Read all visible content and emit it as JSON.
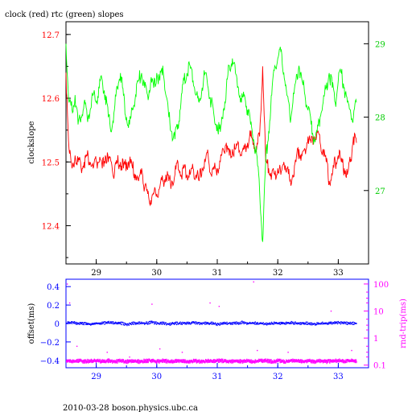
{
  "footer": "2010-03-28  boson.physics.ubc.ca",
  "chart_data": [
    {
      "type": "line",
      "title": "clock (red) rtc (green) slopes",
      "ylabel": "clockslope",
      "xlim": [
        28.5,
        33.5
      ],
      "x_ticks": [
        29,
        30,
        31,
        32,
        33
      ],
      "ylim_left": [
        12.34,
        12.72
      ],
      "yticks_left": [
        12.4,
        12.5,
        12.6,
        12.7
      ],
      "ylim_right": [
        26.0,
        29.3
      ],
      "yticks_right": [
        27,
        28,
        29
      ],
      "colors": {
        "axes": "#000000",
        "clock": "#ff0000",
        "rtc": "#00ff00"
      },
      "series": [
        {
          "axis": "left",
          "color": "#ff0000",
          "x": [
            28.5,
            28.55,
            28.6,
            28.65,
            28.7,
            28.75,
            28.8,
            28.85,
            28.9,
            28.95,
            29.0,
            29.05,
            29.1,
            29.15,
            29.2,
            29.25,
            29.3,
            29.35,
            29.4,
            29.45,
            29.5,
            29.55,
            29.6,
            29.65,
            29.7,
            29.75,
            29.8,
            29.85,
            29.9,
            29.95,
            30.0,
            30.05,
            30.1,
            30.15,
            30.2,
            30.25,
            30.3,
            30.35,
            30.4,
            30.45,
            30.5,
            30.55,
            30.6,
            30.65,
            30.7,
            30.75,
            30.8,
            30.85,
            30.9,
            30.95,
            31.0,
            31.05,
            31.1,
            31.15,
            31.2,
            31.25,
            31.3,
            31.35,
            31.4,
            31.45,
            31.5,
            31.55,
            31.6,
            31.65,
            31.7,
            31.75,
            31.8,
            31.85,
            31.9,
            31.95,
            32.0,
            32.05,
            32.1,
            32.15,
            32.2,
            32.25,
            32.3,
            32.35,
            32.4,
            32.45,
            32.5,
            32.55,
            32.6,
            32.65,
            32.7,
            32.75,
            32.8,
            32.85,
            32.9,
            32.95,
            33.0,
            33.05,
            33.1,
            33.15,
            33.2,
            33.25,
            33.3
          ],
          "y": [
            12.64,
            12.52,
            12.49,
            12.51,
            12.5,
            12.49,
            12.5,
            12.51,
            12.5,
            12.49,
            12.5,
            12.5,
            12.49,
            12.51,
            12.5,
            12.5,
            12.48,
            12.5,
            12.5,
            12.49,
            12.5,
            12.5,
            12.49,
            12.48,
            12.47,
            12.49,
            12.46,
            12.45,
            12.44,
            12.45,
            12.45,
            12.46,
            12.47,
            12.48,
            12.47,
            12.47,
            12.48,
            12.5,
            12.48,
            12.49,
            12.48,
            12.48,
            12.49,
            12.48,
            12.47,
            12.49,
            12.5,
            12.51,
            12.48,
            12.49,
            12.49,
            12.5,
            12.52,
            12.53,
            12.51,
            12.52,
            12.52,
            12.53,
            12.51,
            12.52,
            12.53,
            12.54,
            12.53,
            12.52,
            12.54,
            12.65,
            12.5,
            12.49,
            12.48,
            12.48,
            12.49,
            12.48,
            12.5,
            12.49,
            12.47,
            12.48,
            12.5,
            12.52,
            12.51,
            12.52,
            12.54,
            12.53,
            12.54,
            12.55,
            12.53,
            12.52,
            12.5,
            12.47,
            12.48,
            12.5,
            12.51,
            12.5,
            12.49,
            12.48,
            12.5,
            12.54,
            12.53
          ]
        },
        {
          "axis": "right",
          "color": "#00ff00",
          "x": [
            28.5,
            28.55,
            28.6,
            28.65,
            28.7,
            28.75,
            28.8,
            28.85,
            28.9,
            28.95,
            29.0,
            29.05,
            29.1,
            29.15,
            29.2,
            29.25,
            29.3,
            29.35,
            29.4,
            29.45,
            29.5,
            29.55,
            29.6,
            29.65,
            29.7,
            29.75,
            29.8,
            29.85,
            29.9,
            29.95,
            30.0,
            30.05,
            30.1,
            30.15,
            30.2,
            30.25,
            30.3,
            30.35,
            30.4,
            30.45,
            30.5,
            30.55,
            30.6,
            30.65,
            30.7,
            30.75,
            30.8,
            30.85,
            30.9,
            30.95,
            31.0,
            31.05,
            31.1,
            31.15,
            31.2,
            31.25,
            31.3,
            31.35,
            31.4,
            31.45,
            31.5,
            31.55,
            31.6,
            31.65,
            31.7,
            31.75,
            31.8,
            31.85,
            31.9,
            31.95,
            32.0,
            32.05,
            32.1,
            32.15,
            32.2,
            32.25,
            32.3,
            32.35,
            32.4,
            32.45,
            32.5,
            32.55,
            32.6,
            32.65,
            32.7,
            32.75,
            32.8,
            32.85,
            32.9,
            32.95,
            33.0,
            33.05,
            33.1,
            33.15,
            33.2,
            33.25,
            33.3
          ],
          "y": [
            29.0,
            28.2,
            28.1,
            28.3,
            27.9,
            28.0,
            28.2,
            28.0,
            28.1,
            28.3,
            28.2,
            28.4,
            28.5,
            28.3,
            28.0,
            27.8,
            28.1,
            28.4,
            28.6,
            28.3,
            28.0,
            27.9,
            28.1,
            28.3,
            28.5,
            28.6,
            28.4,
            28.3,
            28.5,
            28.4,
            28.6,
            28.5,
            28.7,
            28.3,
            28.0,
            27.8,
            27.7,
            27.9,
            28.2,
            28.5,
            28.6,
            28.7,
            28.5,
            28.3,
            28.2,
            28.4,
            28.6,
            28.4,
            28.2,
            28.0,
            27.9,
            27.8,
            28.1,
            28.4,
            28.7,
            28.8,
            28.6,
            28.4,
            28.2,
            28.3,
            28.1,
            27.9,
            27.7,
            27.5,
            27.0,
            26.3,
            27.4,
            27.8,
            28.3,
            28.7,
            28.8,
            28.9,
            28.6,
            28.3,
            28.0,
            28.2,
            28.5,
            28.7,
            28.5,
            28.3,
            28.1,
            27.9,
            27.7,
            27.8,
            28.0,
            28.2,
            28.4,
            28.6,
            28.4,
            28.2,
            28.5,
            28.6,
            28.4,
            28.2,
            28.1,
            28.0,
            28.2
          ]
        }
      ]
    },
    {
      "type": "scatter",
      "ylabel": "offset(ms)",
      "ylabel_right": "rnd-trip(ms)",
      "xlim": [
        28.5,
        33.5
      ],
      "x_ticks": [
        29,
        30,
        31,
        32,
        33
      ],
      "ylim_left": [
        -0.48,
        0.48
      ],
      "yticks_left": [
        -0.4,
        -0.2,
        0.0,
        0.2,
        0.4
      ],
      "yticks_left_labels": [
        "−0.4",
        "−0.2",
        "0",
        "0.2",
        "0.4"
      ],
      "yscale_right": "log",
      "ylim_right": [
        0.08,
        150
      ],
      "yticks_right": [
        0.1,
        1,
        10,
        100
      ],
      "yticks_right_labels": [
        "0.1",
        "1",
        "10",
        "100"
      ],
      "colors": {
        "axes": "#0000ff",
        "offset": "#0000ff",
        "roundtrip": "#ff00ff"
      },
      "series": [
        {
          "axis": "left",
          "color": "#0000ff",
          "x": [
            28.5,
            28.6,
            28.7,
            28.8,
            28.9,
            29.0,
            29.1,
            29.2,
            29.3,
            29.4,
            29.5,
            29.6,
            29.7,
            29.8,
            29.9,
            30.0,
            30.1,
            30.2,
            30.3,
            30.4,
            30.5,
            30.6,
            30.7,
            30.8,
            30.9,
            31.0,
            31.1,
            31.2,
            31.3,
            31.4,
            31.5,
            31.6,
            31.7,
            31.8,
            31.9,
            32.0,
            32.1,
            32.2,
            32.3,
            32.4,
            32.5,
            32.6,
            32.7,
            32.8,
            32.9,
            33.0,
            33.1,
            33.2,
            33.3
          ],
          "y": [
            0.0,
            0.01,
            0.0,
            0.0,
            -0.01,
            0.0,
            0.0,
            0.01,
            0.0,
            0.0,
            -0.01,
            0.0,
            0.0,
            0.0,
            0.01,
            0.0,
            0.0,
            -0.01,
            0.0,
            0.0,
            0.0,
            0.01,
            0.0,
            0.0,
            0.0,
            -0.01,
            0.0,
            0.0,
            0.0,
            0.01,
            0.0,
            0.0,
            0.0,
            -0.01,
            0.0,
            0.0,
            0.0,
            0.01,
            0.0,
            0.0,
            0.0,
            -0.01,
            0.0,
            0.0,
            0.0,
            0.01,
            0.0,
            0.0,
            0.0
          ]
        },
        {
          "axis": "right",
          "color": "#ff00ff",
          "x": [
            28.5,
            28.6,
            28.7,
            28.8,
            28.9,
            29.0,
            29.1,
            29.2,
            29.3,
            29.4,
            29.5,
            29.6,
            29.7,
            29.8,
            29.9,
            30.0,
            30.1,
            30.2,
            30.3,
            30.4,
            30.5,
            30.6,
            30.7,
            30.8,
            30.9,
            31.0,
            31.1,
            31.2,
            31.3,
            31.4,
            31.5,
            31.6,
            31.7,
            31.8,
            31.9,
            32.0,
            32.1,
            32.2,
            32.3,
            32.4,
            32.5,
            32.6,
            32.7,
            32.8,
            32.9,
            33.0,
            33.1,
            33.2,
            33.3
          ],
          "y": [
            0.15,
            0.14,
            0.15,
            0.14,
            0.15,
            0.15,
            0.14,
            0.15,
            0.14,
            0.15,
            0.14,
            0.15,
            0.14,
            0.15,
            0.15,
            0.14,
            0.15,
            0.14,
            0.15,
            0.15,
            0.14,
            0.15,
            0.14,
            0.15,
            0.14,
            0.15,
            0.15,
            0.14,
            0.15,
            0.14,
            0.15,
            0.14,
            0.15,
            0.15,
            0.14,
            0.15,
            0.14,
            0.15,
            0.15,
            0.14,
            0.15,
            0.14,
            0.15,
            0.14,
            0.15,
            0.15,
            0.14,
            0.15,
            0.15
          ]
        },
        {
          "axis": "right",
          "color": "#ff00ff",
          "marker": "dot",
          "x": [
            28.52,
            28.56,
            28.68,
            29.18,
            29.55,
            29.92,
            30.05,
            30.42,
            30.88,
            31.03,
            31.6,
            31.66,
            32.17,
            32.88,
            33.22
          ],
          "y": [
            100,
            20,
            0.5,
            0.3,
            0.2,
            18,
            0.4,
            0.3,
            20,
            15,
            120,
            0.35,
            0.3,
            10,
            0.35
          ]
        }
      ]
    }
  ]
}
